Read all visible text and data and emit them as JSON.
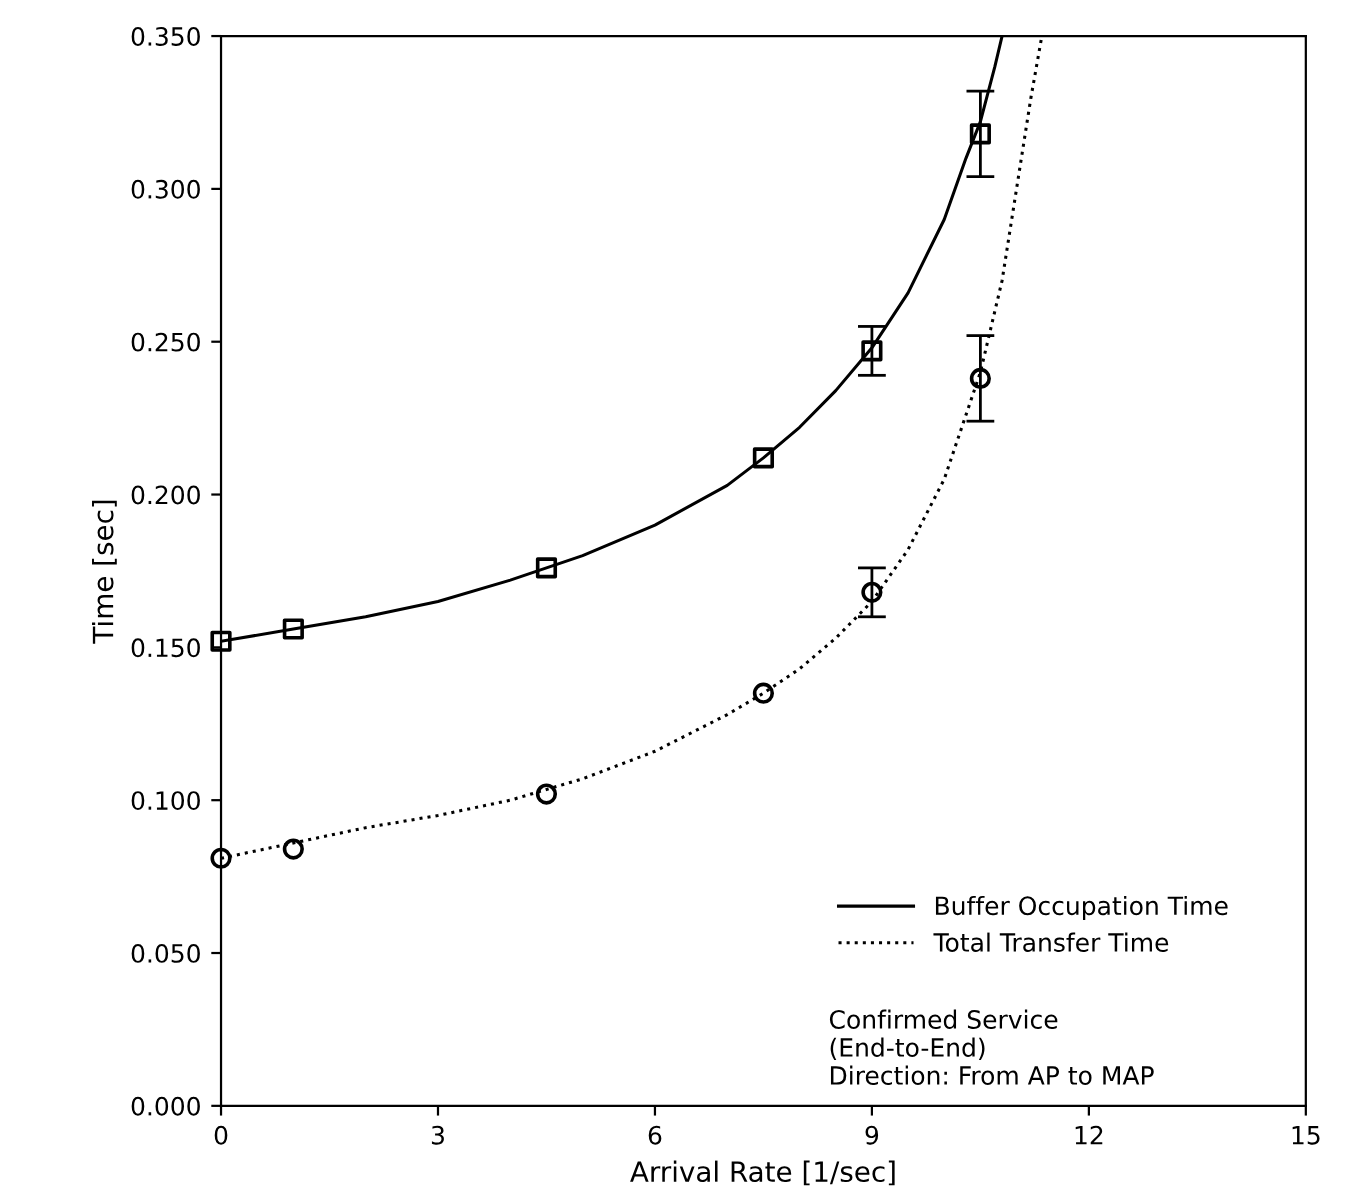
{
  "chart_data": {
    "type": "line",
    "xlabel": "Arrival Rate [1/sec]",
    "ylabel": "Time [sec]",
    "xlim": [
      0,
      15
    ],
    "xticks": [
      0,
      3,
      6,
      9,
      12,
      15
    ],
    "ylim": [
      0,
      0.35
    ],
    "yticks": [
      {
        "value": 0,
        "label": "0.000"
      },
      {
        "value": 0.05,
        "label": "0.050"
      },
      {
        "value": 0.1,
        "label": "0.100"
      },
      {
        "value": 0.15,
        "label": "0.150"
      },
      {
        "value": 0.2,
        "label": "0.200"
      },
      {
        "value": 0.25,
        "label": "0.250"
      },
      {
        "value": 0.3,
        "label": "0.300"
      },
      {
        "value": 0.35,
        "label": "0.350"
      }
    ],
    "grid": false,
    "legend": "bottom right",
    "annotations": [
      "Confirmed Service\n(End-to-End)\nDirection: From AP to MAP"
    ],
    "series": [
      {
        "name": "Buffer Occupation Time",
        "color": "#000000",
        "line_style": "solid",
        "marker": "none",
        "x": [
          0,
          1,
          2,
          3,
          4,
          5,
          6,
          7,
          7.5,
          8,
          8.5,
          9,
          9.5,
          10,
          10.3,
          10.5,
          10.7,
          10.8
        ],
        "values": [
          0.152,
          0.156,
          0.16,
          0.165,
          0.172,
          0.18,
          0.19,
          0.203,
          0.212,
          0.222,
          0.234,
          0.248,
          0.266,
          0.29,
          0.31,
          0.322,
          0.34,
          0.35
        ]
      },
      {
        "name": "Total Transfer Time",
        "color": "#000000",
        "line_style": "dotted",
        "marker": "none",
        "x": [
          0,
          1,
          2,
          3,
          4,
          5,
          6,
          7,
          7.5,
          8,
          8.5,
          9,
          9.5,
          10,
          10.5,
          10.8,
          11,
          11.2,
          11.35
        ],
        "values": [
          0.081,
          0.086,
          0.091,
          0.095,
          0.1,
          0.107,
          0.116,
          0.128,
          0.135,
          0.143,
          0.153,
          0.165,
          0.182,
          0.205,
          0.24,
          0.27,
          0.3,
          0.33,
          0.35
        ]
      },
      {
        "type": "scatter",
        "color": "#000000",
        "marker": "square",
        "x": [
          0,
          1,
          4.5,
          7.5,
          9,
          10.5
        ],
        "values": [
          0.152,
          0.156,
          0.176,
          0.212,
          0.247,
          0.318
        ],
        "errors": [
          null,
          null,
          null,
          null,
          0.008,
          0.014
        ]
      },
      {
        "type": "scatter",
        "color": "#000000",
        "marker": "circle",
        "x": [
          0,
          1,
          4.5,
          7.5,
          9,
          10.5
        ],
        "values": [
          0.081,
          0.084,
          0.102,
          0.135,
          0.168,
          0.238
        ],
        "errors": [
          null,
          null,
          null,
          null,
          0.008,
          0.014
        ]
      }
    ]
  }
}
